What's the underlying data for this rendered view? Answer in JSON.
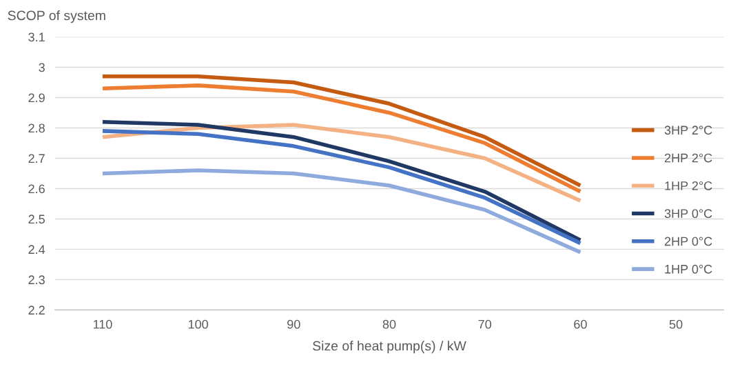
{
  "chart_data": {
    "type": "line",
    "ylabel": "SCOP of system",
    "xlabel": "Size of heat pump(s) / kW",
    "categories": [
      "110",
      "100",
      "90",
      "80",
      "70",
      "60",
      "50"
    ],
    "series": [
      {
        "name": "3HP 2°C",
        "color": "#c55a11",
        "values": [
          2.97,
          2.97,
          2.95,
          2.88,
          2.77,
          2.61,
          null
        ]
      },
      {
        "name": "2HP 2°C",
        "color": "#ed7d31",
        "values": [
          2.93,
          2.94,
          2.92,
          2.85,
          2.75,
          2.59,
          null
        ]
      },
      {
        "name": "1HP 2°C",
        "color": "#f4b183",
        "values": [
          2.77,
          2.8,
          2.81,
          2.77,
          2.7,
          2.56,
          null
        ]
      },
      {
        "name": "3HP 0°C",
        "color": "#203864",
        "values": [
          2.82,
          2.81,
          2.77,
          2.69,
          2.59,
          2.43,
          null
        ]
      },
      {
        "name": "2HP 0°C",
        "color": "#4472c4",
        "values": [
          2.79,
          2.78,
          2.74,
          2.67,
          2.57,
          2.42,
          null
        ]
      },
      {
        "name": "1HP 0°C",
        "color": "#8faadc",
        "values": [
          2.65,
          2.66,
          2.65,
          2.61,
          2.53,
          2.39,
          null
        ]
      }
    ],
    "ylim": [
      2.2,
      3.1
    ],
    "yticks": [
      2.2,
      2.3,
      2.4,
      2.5,
      2.6,
      2.7,
      2.8,
      2.9,
      3,
      3.1
    ],
    "grid": "y",
    "legend": "right",
    "marker": "none",
    "line_style": "solid"
  }
}
